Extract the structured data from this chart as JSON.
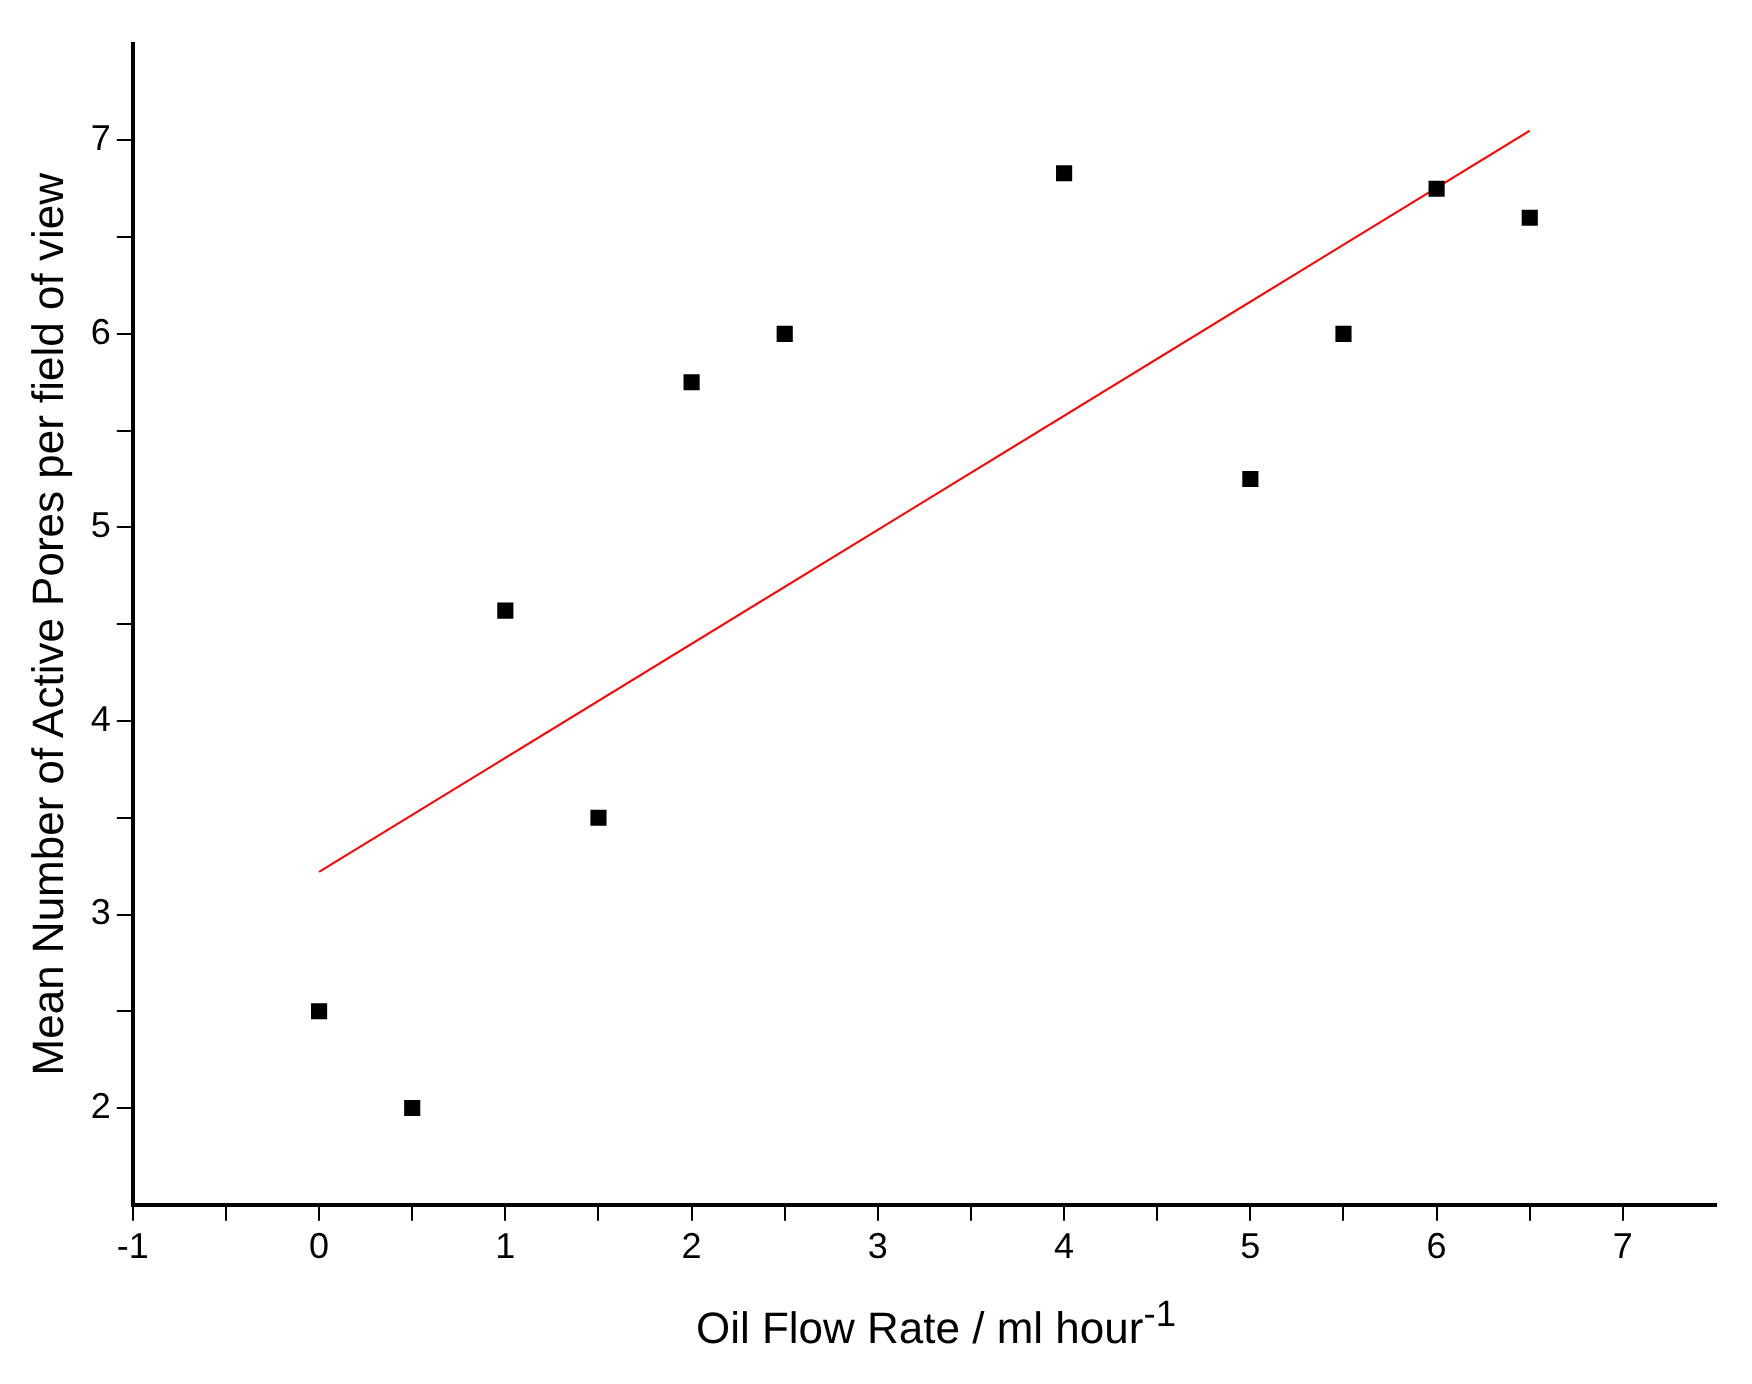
{
  "chart_data": {
    "type": "scatter",
    "xlabel": "Oil Flow Rate / ml hour$^{-1}$",
    "ylabel": "Mean Number of Active Pores per field of view",
    "xlim": [
      -1,
      7.5
    ],
    "ylim": [
      1.5,
      7.5
    ],
    "xticks": [
      -1,
      {
        "value": -0.5,
        "label": null
      },
      0,
      {
        "value": 0.5,
        "label": null
      },
      1,
      {
        "value": 1.5,
        "label": null
      },
      2,
      {
        "value": 2.5,
        "label": null
      },
      3,
      {
        "value": 3.5,
        "label": null
      },
      4,
      {
        "value": 4.5,
        "label": null
      },
      5,
      {
        "value": 5.5,
        "label": null
      },
      6,
      {
        "value": 6.5,
        "label": null
      },
      7
    ],
    "yticks": [
      2,
      {
        "value": 2.5,
        "label": null
      },
      3,
      {
        "value": 3.5,
        "label": null
      },
      4,
      {
        "value": 4.5,
        "label": null
      },
      5,
      {
        "value": 5.5,
        "label": null
      },
      6,
      {
        "value": 6.5,
        "label": null
      },
      7
    ],
    "grid": false,
    "legend": false,
    "series": [
      {
        "marker": "square",
        "color": "#000000",
        "x": [
          0,
          0.5,
          1,
          1.5,
          2,
          2.5,
          4,
          5,
          5.5,
          6,
          6.5
        ],
        "values": [
          2.5,
          2,
          4.57,
          3.5,
          5.75,
          6,
          6.83,
          5.25,
          6,
          6.75,
          6.6
        ]
      },
      {
        "type": "line",
        "color": "#ff0000",
        "x": [
          0,
          6.5
        ],
        "values": [
          3.22,
          7.05
        ]
      }
    ]
  }
}
